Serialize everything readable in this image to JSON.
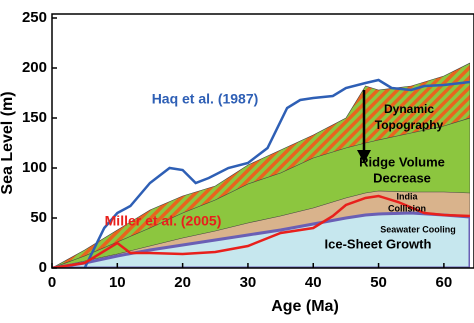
{
  "chart_data": {
    "type": "area",
    "xlabel": "Age (Ma)",
    "ylabel": "Sea Level (m)",
    "xlim": [
      0,
      64
    ],
    "ylim": [
      0,
      250
    ],
    "xticks": [
      0,
      10,
      20,
      30,
      40,
      50,
      60
    ],
    "yticks": [
      0,
      50,
      100,
      150,
      200,
      250
    ],
    "series": [
      {
        "type": "area",
        "color": "#8cc63f",
        "hatch": "#e8641e",
        "x": [
          0,
          5,
          10,
          15,
          20,
          25,
          30,
          35,
          40,
          45,
          48,
          50,
          55,
          60,
          64
        ],
        "values": [
          0,
          18,
          38,
          58,
          72,
          82,
          103,
          118,
          133,
          150,
          182,
          178,
          182,
          192,
          205
        ]
      },
      {
        "type": "area",
        "color": "#8cc63f",
        "x": [
          0,
          5,
          10,
          15,
          20,
          25,
          30,
          35,
          40,
          45,
          48,
          50,
          55,
          60,
          64
        ],
        "values": [
          0,
          12,
          26,
          40,
          55,
          68,
          84,
          95,
          110,
          120,
          125,
          128,
          135,
          142,
          150
        ]
      },
      {
        "type": "area",
        "color": "#d9b38c",
        "x": [
          0,
          5,
          10,
          15,
          20,
          25,
          30,
          35,
          40,
          45,
          48,
          50,
          55,
          60,
          64
        ],
        "values": [
          0,
          7,
          14,
          22,
          30,
          37,
          45,
          52,
          60,
          70,
          75,
          77,
          76,
          76,
          75
        ]
      },
      {
        "type": "area",
        "color": "#c6e7ee",
        "edge": "#6a5fb5",
        "x": [
          0,
          5,
          10,
          15,
          20,
          25,
          30,
          35,
          40,
          45,
          48,
          50,
          55,
          60,
          64
        ],
        "values": [
          0,
          5,
          12,
          18,
          23,
          28,
          33,
          38,
          44,
          50,
          53,
          54,
          55,
          53,
          51
        ]
      },
      {
        "type": "line",
        "name": "Haq et al. (1987)",
        "color": "#2e5fb5",
        "x": [
          5,
          8,
          10,
          12,
          15,
          18,
          20,
          22,
          24,
          27,
          30,
          33,
          36,
          38,
          40,
          43,
          45,
          48,
          50,
          52,
          55,
          57,
          60,
          64
        ],
        "values": [
          0,
          40,
          55,
          62,
          85,
          100,
          98,
          85,
          90,
          100,
          105,
          120,
          160,
          168,
          170,
          172,
          180,
          185,
          188,
          180,
          178,
          182,
          183,
          186
        ]
      },
      {
        "type": "line",
        "name": "Miller et al. (2005)",
        "color": "#e8201c",
        "x": [
          0,
          5,
          10,
          12,
          15,
          20,
          25,
          30,
          35,
          40,
          43,
          45,
          48,
          50,
          53,
          57,
          60,
          64
        ],
        "values": [
          0,
          5,
          25,
          15,
          15,
          14,
          16,
          22,
          35,
          40,
          52,
          63,
          70,
          72,
          66,
          55,
          53,
          52
        ]
      }
    ],
    "annotations": [
      "Dynamic",
      "Topography",
      "Ridge Volume",
      "Decrease",
      "India",
      "Collision",
      "Seawater Cooling",
      "Ice-Sheet Growth"
    ]
  }
}
